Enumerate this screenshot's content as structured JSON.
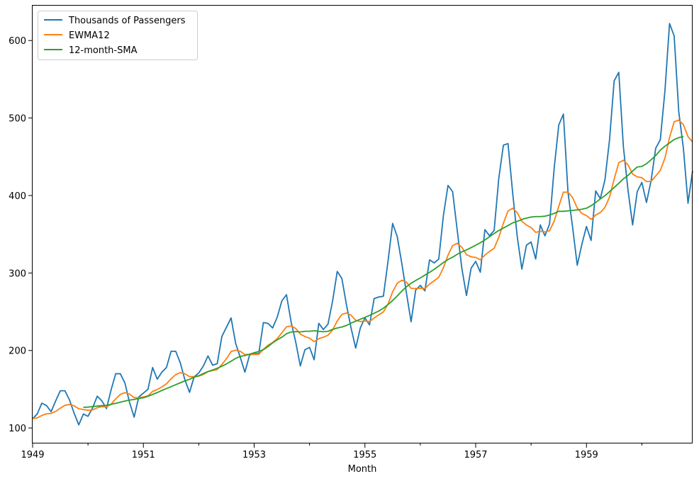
{
  "chart_data": {
    "type": "line",
    "title": "",
    "xlabel": "Month",
    "ylabel": "",
    "x_start": "1949-01",
    "x_end": "1960-12",
    "xlim": [
      "1949-01",
      "1960-12"
    ],
    "ylim": [
      80,
      645
    ],
    "x_ticks": [
      {
        "date": "1949-01",
        "label": "1949"
      },
      {
        "date": "1951-01",
        "label": "1951"
      },
      {
        "date": "1953-01",
        "label": "1953"
      },
      {
        "date": "1955-01",
        "label": "1955"
      },
      {
        "date": "1957-01",
        "label": "1957"
      },
      {
        "date": "1959-01",
        "label": "1959"
      }
    ],
    "x_minor_tick_years": [
      1950,
      1952,
      1954,
      1956,
      1958,
      1960
    ],
    "y_ticks": [
      100,
      200,
      300,
      400,
      500,
      600
    ],
    "grid": false,
    "legend_position": "top-left",
    "series": [
      {
        "name": "Thousands of Passengers",
        "color": "#1f77b4",
        "start": "1949-01",
        "values": [
          112,
          118,
          132,
          129,
          121,
          135,
          148,
          148,
          136,
          119,
          104,
          118,
          115,
          126,
          141,
          135,
          125,
          149,
          170,
          170,
          158,
          133,
          114,
          140,
          145,
          150,
          178,
          163,
          172,
          178,
          199,
          199,
          184,
          162,
          146,
          166,
          171,
          180,
          193,
          181,
          183,
          218,
          230,
          242,
          209,
          191,
          172,
          194,
          196,
          196,
          236,
          235,
          229,
          243,
          264,
          272,
          237,
          211,
          180,
          201,
          204,
          188,
          235,
          227,
          234,
          264,
          302,
          293,
          259,
          229,
          203,
          229,
          242,
          233,
          267,
          269,
          270,
          315,
          364,
          347,
          312,
          274,
          237,
          278,
          284,
          277,
          317,
          313,
          318,
          374,
          413,
          405,
          355,
          306,
          271,
          306,
          315,
          301,
          356,
          348,
          355,
          422,
          465,
          467,
          404,
          347,
          305,
          336,
          340,
          318,
          362,
          348,
          363,
          435,
          491,
          505,
          404,
          359,
          310,
          337,
          360,
          342,
          406,
          396,
          420,
          472,
          548,
          559,
          463,
          407,
          362,
          405,
          417,
          391,
          419,
          461,
          472,
          535,
          622,
          606,
          508,
          461,
          390,
          432
        ]
      },
      {
        "name": "EWMA12",
        "color": "#ff7f0e",
        "start": "1949-01",
        "values": [
          112.0,
          113.0,
          116.1,
          118.3,
          118.8,
          121.3,
          125.6,
          129.2,
          130.3,
          128.6,
          124.8,
          123.8,
          122.8,
          123.3,
          126.1,
          127.5,
          127.1,
          130.6,
          137.5,
          143.3,
          145.6,
          143.7,
          139.1,
          139.2,
          140.0,
          141.5,
          147.2,
          149.6,
          153.0,
          156.9,
          163.4,
          168.9,
          171.4,
          169.9,
          166.2,
          166.2,
          166.9,
          169.0,
          172.7,
          174.0,
          175.4,
          181.9,
          189.3,
          198.6,
          200.3,
          198.9,
          194.8,
          194.8,
          194.9,
          195.0,
          201.5,
          206.7,
          210.3,
          215.3,
          222.8,
          230.5,
          231.6,
          228.5,
          221.1,
          218.0,
          215.8,
          211.5,
          215.2,
          217.1,
          219.7,
          226.5,
          238.1,
          246.5,
          248.4,
          245.5,
          238.9,
          237.3,
          238.0,
          237.3,
          241.9,
          246.0,
          249.7,
          259.7,
          275.7,
          286.7,
          290.6,
          288.1,
          280.2,
          279.9,
          280.4,
          279.9,
          285.6,
          289.9,
          294.4,
          306.7,
          322.9,
          335.4,
          338.3,
          333.3,
          323.7,
          320.9,
          320.1,
          317.1,
          323.1,
          327.8,
          332.0,
          345.9,
          364.2,
          380.0,
          383.6,
          377.9,
          366.7,
          361.9,
          358.6,
          352.4,
          353.9,
          353.0,
          354.5,
          366.9,
          386.0,
          404.3,
          404.2,
          397.3,
          383.9,
          376.7,
          374.1,
          369.2,
          374.8,
          378.1,
          384.6,
          398.0,
          421.1,
          442.3,
          445.5,
          439.6,
          427.6,
          424.1,
          423.0,
          418.0,
          418.2,
          425.2,
          432.4,
          448.2,
          475.0,
          495.2,
          497.2,
          491.6,
          475.9,
          469.0
        ]
      },
      {
        "name": "12-month-SMA",
        "color": "#2ca02c",
        "start": "1949-12",
        "values": [
          126.7,
          126.9,
          127.6,
          128.3,
          128.8,
          129.2,
          130.5,
          131.8,
          133.2,
          134.7,
          136.0,
          136.8,
          138.0,
          139.0,
          140.9,
          143.2,
          145.7,
          148.4,
          150.8,
          153.3,
          155.8,
          158.3,
          160.8,
          162.8,
          165.5,
          167.4,
          170.2,
          172.8,
          174.8,
          177.1,
          179.6,
          182.6,
          186.1,
          189.8,
          192.5,
          193.5,
          195.2,
          197.0,
          198.8,
          201.0,
          205.0,
          209.8,
          213.8,
          217.1,
          221.6,
          223.8,
          224.3,
          223.9,
          224.8,
          224.8,
          225.5,
          224.7,
          224.2,
          224.8,
          227.2,
          229.0,
          230.3,
          232.3,
          235.3,
          237.8,
          240.3,
          242.8,
          245.3,
          248.1,
          250.9,
          254.6,
          259.2,
          264.5,
          270.4,
          276.7,
          282.2,
          286.8,
          290.3,
          293.6,
          297.3,
          300.8,
          304.7,
          309.0,
          313.5,
          317.4,
          320.4,
          324.1,
          327.3,
          329.8,
          332.7,
          335.8,
          339.0,
          342.6,
          346.8,
          350.9,
          354.8,
          358.0,
          361.2,
          364.7,
          366.6,
          369.1,
          370.8,
          372.2,
          372.8,
          372.8,
          373.3,
          374.8,
          376.9,
          379.6,
          379.6,
          380.2,
          380.8,
          381.5,
          382.3,
          383.6,
          386.8,
          391.0,
          395.6,
          399.8,
          405.0,
          410.3,
          415.8,
          421.5,
          425.9,
          431.6,
          436.8,
          437.5,
          441.0,
          446.1,
          451.6,
          458.5,
          463.6,
          467.9,
          472.3,
          474.7,
          476.2
        ]
      }
    ]
  }
}
